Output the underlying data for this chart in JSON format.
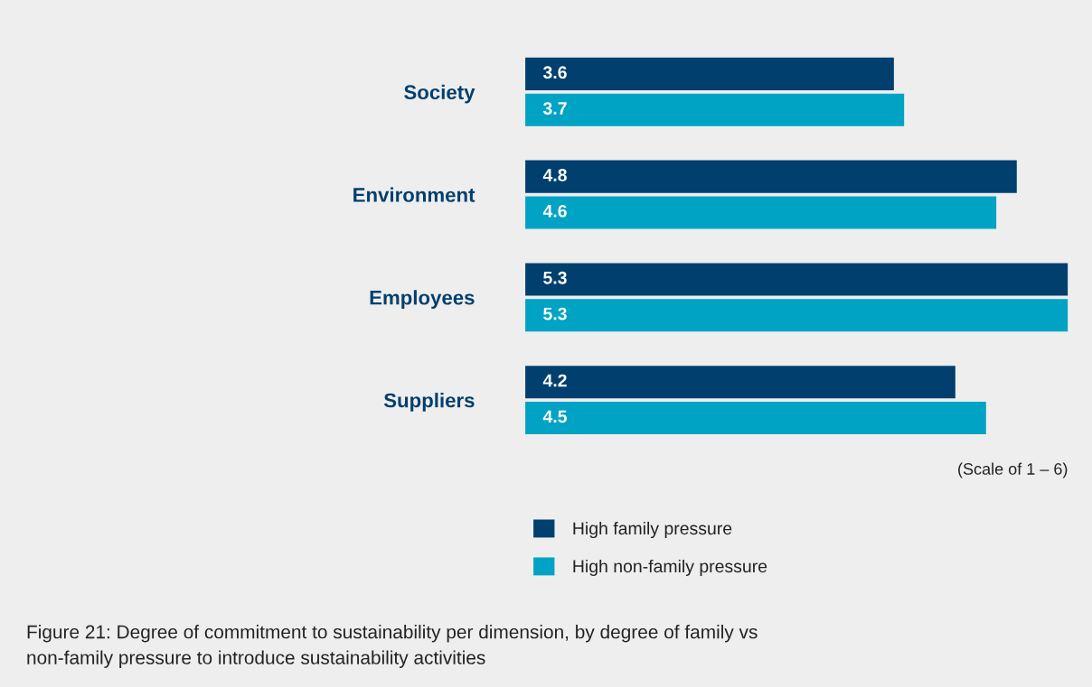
{
  "chart_data": {
    "type": "bar",
    "orientation": "horizontal",
    "categories": [
      "Society",
      "Environment",
      "Employees",
      "Suppliers"
    ],
    "series": [
      {
        "name": "High family pressure",
        "color": "#003f6e",
        "values": [
          3.6,
          4.8,
          5.3,
          4.2
        ]
      },
      {
        "name": "High non-family pressure",
        "color": "#00a3c4",
        "values": [
          3.7,
          4.6,
          5.3,
          4.5
        ]
      }
    ],
    "data_labels": true,
    "legend": "bottom",
    "grid": false,
    "tick_labels": "y",
    "annotations": [
      "(Scale of 1 – 6)",
      "Figure 21: Degree of commitment to sustainability per dimension, by degree of family vs\nnon-family pressure to introduce sustainability activities"
    ]
  }
}
